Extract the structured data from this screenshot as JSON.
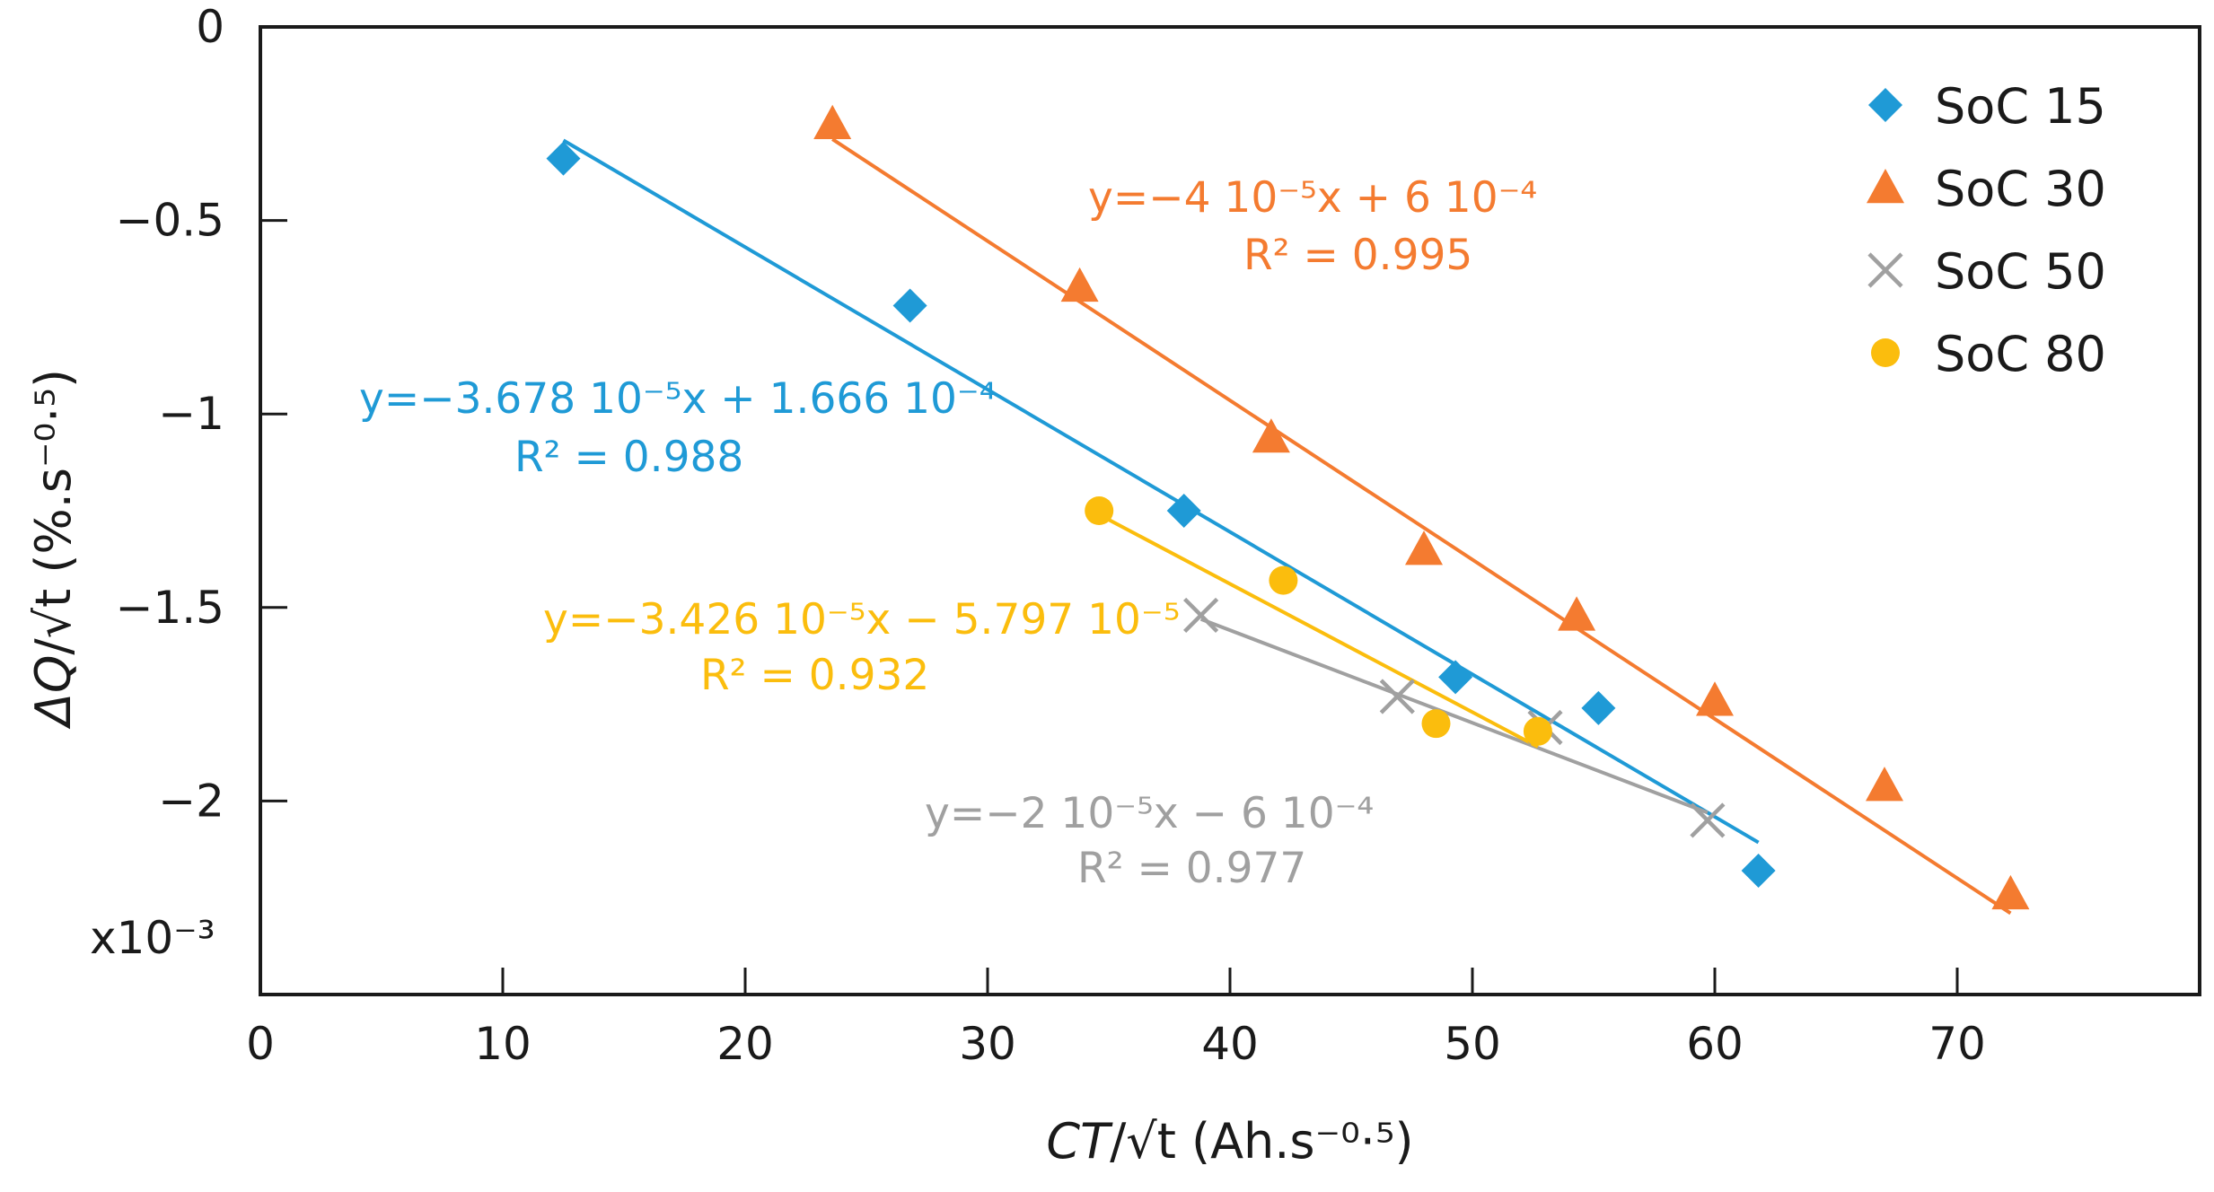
{
  "chart_data": {
    "type": "scatter",
    "xlim": [
      0,
      80
    ],
    "ylim": [
      -0.0025,
      0
    ],
    "x_ticks": [
      0,
      10,
      20,
      30,
      40,
      50,
      60,
      70
    ],
    "y_ticks": [
      0,
      -0.0005,
      -0.001,
      -0.0015,
      -0.002
    ],
    "x_tick_labels": [
      "0",
      "10",
      "20",
      "30",
      "40",
      "50",
      "60",
      "70"
    ],
    "y_tick_labels": [
      "0",
      "−0.5",
      "−1",
      "−1.5",
      "−2"
    ],
    "y_multiplier": "x10⁻³",
    "xlabel": {
      "italic": "CT",
      "rest": "/√t (Ah.s⁻⁰·⁵)"
    },
    "ylabel": {
      "italic": "ΔQ",
      "rest": "/√t (%.s⁻⁰·⁵)"
    },
    "grid": false,
    "legend_position": "top-right",
    "series": [
      {
        "name": "SoC 15",
        "marker": "diamond",
        "color": "#1f9ad6",
        "x": [
          12.5,
          26.8,
          38.1,
          49.3,
          55.2,
          61.8
        ],
        "y": [
          -0.00034,
          -0.00072,
          -0.00125,
          -0.00168,
          -0.00176,
          -0.00218
        ],
        "fit": {
          "x": [
            12.5,
            61.8
          ],
          "y": [
            -0.000293,
            -0.002107
          ]
        },
        "equation": "y=−3.678 10⁻⁵x + 1.666 10⁻⁴",
        "r2": "R² = 0.988"
      },
      {
        "name": "SoC 30",
        "marker": "triangle",
        "color": "#f47b30",
        "x": [
          23.6,
          33.8,
          41.7,
          48.0,
          54.3,
          60.0,
          67.0,
          72.2
        ],
        "y": [
          -0.00025,
          -0.00067,
          -0.00106,
          -0.00135,
          -0.00152,
          -0.00174,
          -0.00196,
          -0.00224
        ],
        "fit": {
          "x": [
            23.6,
            72.2
          ],
          "y": [
            -0.00029,
            -0.00229
          ]
        },
        "equation": "y=−4 10⁻⁵x + 6 10⁻⁴",
        "r2": "R² = 0.995"
      },
      {
        "name": "SoC 50",
        "marker": "cross",
        "color": "#a0a0a0",
        "x": [
          38.8,
          46.9,
          53.0,
          59.7
        ],
        "y": [
          -0.00152,
          -0.00173,
          -0.00181,
          -0.00205
        ],
        "fit": {
          "x": [
            38.8,
            59.7
          ],
          "y": [
            -0.00153,
            -0.00203
          ]
        },
        "equation": "y=−2 10⁻⁵x − 6 10⁻⁴",
        "r2": "R² = 0.977"
      },
      {
        "name": "SoC 80",
        "marker": "circle",
        "color": "#fbbd0d",
        "x": [
          34.6,
          42.2,
          48.5,
          52.7
        ],
        "y": [
          -0.00125,
          -0.00143,
          -0.0018,
          -0.00182
        ],
        "fit": {
          "x": [
            34.6,
            52.7
          ],
          "y": [
            -0.00126,
            -0.00186
          ]
        },
        "equation": "y=−3.426 10⁻⁵x − 5.797 10⁻⁵",
        "r2": "R² = 0.932"
      }
    ]
  }
}
